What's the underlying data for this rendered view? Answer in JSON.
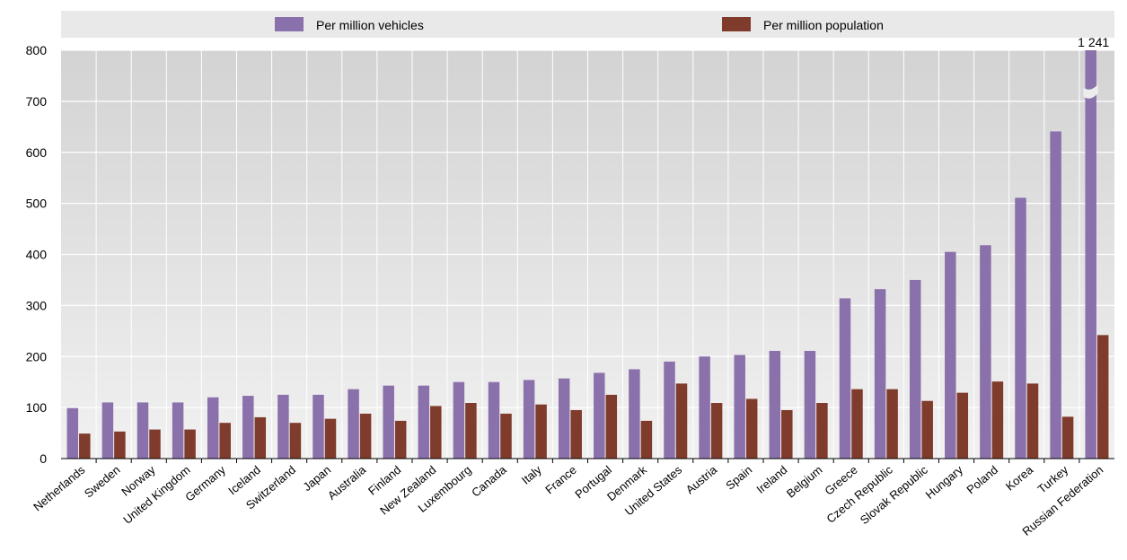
{
  "chart_data": {
    "type": "bar",
    "categories": [
      "Netherlands",
      "Sweden",
      "Norway",
      "United Kingdom",
      "Germany",
      "Iceland",
      "Switzerland",
      "Japan",
      "Australia",
      "Finland",
      "New Zealand",
      "Luxembourg",
      "Canada",
      "Italy",
      "France",
      "Portugal",
      "Denmark",
      "United States",
      "Austria",
      "Spain",
      "Ireland",
      "Belgium",
      "Greece",
      "Czech Republic",
      "Slovak Republic",
      "Hungary",
      "Poland",
      "Korea",
      "Turkey",
      "Russian Federation"
    ],
    "series": [
      {
        "name": "Per million vehicles",
        "color": "#8b71ab",
        "values": [
          99,
          110,
          110,
          110,
          120,
          123,
          125,
          125,
          136,
          143,
          143,
          150,
          150,
          154,
          157,
          168,
          175,
          190,
          200,
          203,
          211,
          211,
          314,
          332,
          350,
          405,
          418,
          511,
          641,
          1241
        ]
      },
      {
        "name": "Per million population",
        "color": "#7f3b2c",
        "values": [
          49,
          53,
          57,
          57,
          70,
          81,
          70,
          78,
          88,
          74,
          103,
          109,
          88,
          106,
          95,
          125,
          74,
          147,
          109,
          117,
          95,
          109,
          136,
          136,
          113,
          129,
          151,
          147,
          82,
          242
        ]
      }
    ],
    "ylim": [
      0,
      800
    ],
    "yticks": [
      0,
      100,
      200,
      300,
      400,
      500,
      600,
      700,
      800
    ],
    "axis_break": {
      "category": "Russian Federation",
      "series": "Per million vehicles",
      "label": "1 241"
    },
    "grid": true,
    "legend_position": "top",
    "title": "",
    "xlabel": "",
    "ylabel": ""
  }
}
